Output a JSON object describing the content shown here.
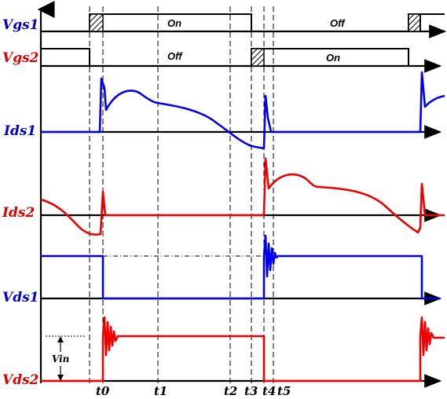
{
  "signals": {
    "vgs1": "Vgs1",
    "vgs2": "Vgs2",
    "ids1": "Ids1",
    "ids2": "Ids2",
    "vds1": "Vds1",
    "vds2": "Vds2"
  },
  "states": {
    "vgs1_on": "On",
    "vgs1_off": "Off",
    "vgs2_off": "Off",
    "vgs2_on": "On"
  },
  "time_markers": [
    "t0",
    "t1",
    "t2",
    "t3",
    "t4",
    "t5"
  ],
  "annotation": {
    "vin": "Vin"
  },
  "colors": {
    "switch1": "#0000ee",
    "switch2": "#ee0000",
    "axis": "#000000"
  }
}
